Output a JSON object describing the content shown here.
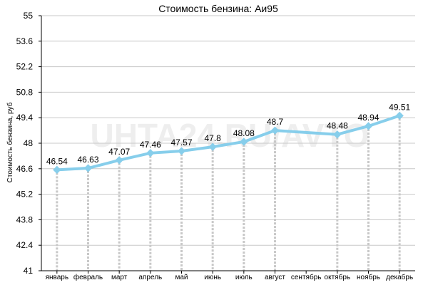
{
  "watermark": "UHTA24.RU/AVTO",
  "colors": {
    "line": "#87ceeb",
    "marker": "#87ceeb",
    "grid": "#c8c8c8",
    "drop": "#c8c8c8"
  },
  "chart_data": {
    "type": "line",
    "title": "Стоимость бензина: Аи95",
    "ylabel": "Стоимость бензина, руб",
    "xlabel": "",
    "ylim": [
      41,
      55
    ],
    "yticks": [
      "41",
      "42.4",
      "43.8",
      "45.2",
      "46.6",
      "48",
      "49.4",
      "50.8",
      "52.2",
      "53.6",
      "55"
    ],
    "categories": [
      "январь",
      "февраль",
      "март",
      "апрель",
      "май",
      "июнь",
      "июль",
      "август",
      "сентябрь",
      "октябрь",
      "ноябрь",
      "декабрь"
    ],
    "points": [
      {
        "category": "январь",
        "value": 46.54,
        "label": "46.54"
      },
      {
        "category": "февраль",
        "value": 46.63,
        "label": "46.63"
      },
      {
        "category": "март",
        "value": 47.07,
        "label": "47.07"
      },
      {
        "category": "апрель",
        "value": 47.46,
        "label": "47.46"
      },
      {
        "category": "май",
        "value": 47.57,
        "label": "47.57"
      },
      {
        "category": "июнь",
        "value": 47.8,
        "label": "47.8"
      },
      {
        "category": "июль",
        "value": 48.08,
        "label": "48.08"
      },
      {
        "category": "август",
        "value": 48.7,
        "label": "48.7"
      },
      {
        "category": "октябрь",
        "value": 48.48,
        "label": "48.48"
      },
      {
        "category": "ноябрь",
        "value": 48.94,
        "label": "48.94"
      },
      {
        "category": "декабрь",
        "value": 49.51,
        "label": "49.51"
      }
    ],
    "grid": true,
    "legend": "none"
  }
}
